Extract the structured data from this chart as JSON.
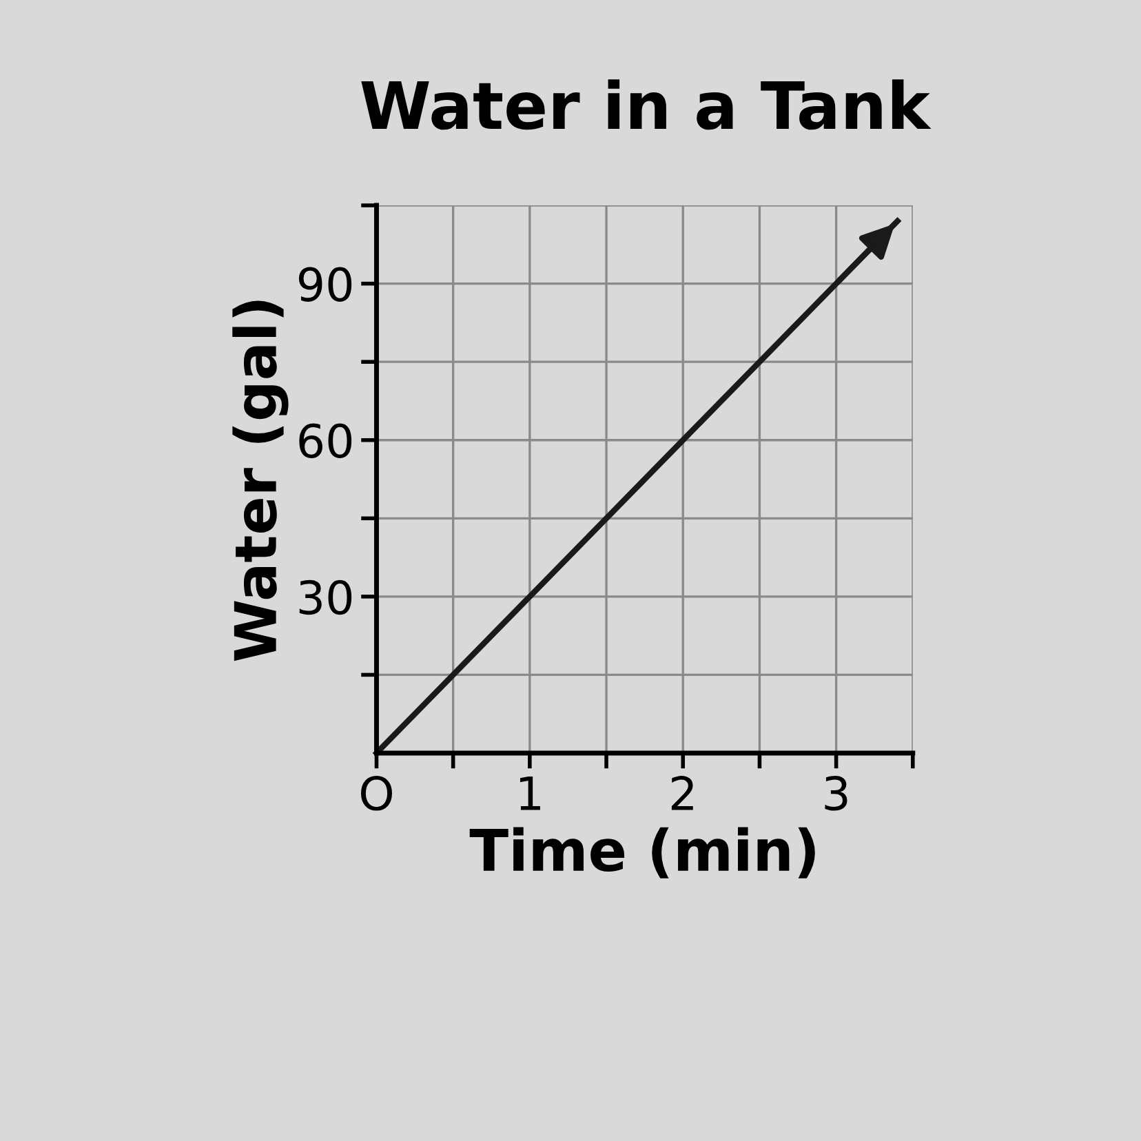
{
  "chart_data": {
    "type": "line",
    "title": "Water in a Tank",
    "xlabel": "Time (min)",
    "ylabel": "Water (gal)",
    "x": [
      0,
      1,
      2,
      3,
      3.4
    ],
    "series": [
      {
        "color": "#1a1a1a",
        "values": [
          0,
          30,
          60,
          90,
          102
        ]
      }
    ],
    "xlim": [
      0,
      3.5
    ],
    "ylim": [
      0,
      105
    ],
    "xticks": [
      {
        "value": 0,
        "label": "O"
      },
      {
        "value": 0.5,
        "label": null
      },
      1,
      {
        "value": 1.5,
        "label": null
      },
      2,
      {
        "value": 2.5,
        "label": null
      },
      3,
      {
        "value": 3.5,
        "label": null
      }
    ],
    "yticks": [
      {
        "value": 15,
        "label": null
      },
      30,
      {
        "value": 45,
        "label": null
      },
      60,
      {
        "value": 75,
        "label": null
      },
      90,
      {
        "value": 105,
        "label": null
      }
    ],
    "grid": true,
    "marker": "none",
    "line_style": "solid"
  }
}
